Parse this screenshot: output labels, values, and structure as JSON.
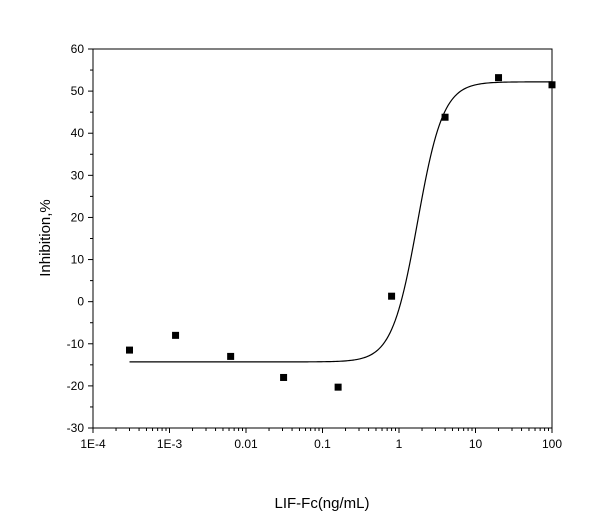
{
  "chart_data": {
    "type": "scatter",
    "title": "",
    "xlabel": "LIF-Fc(ng/mL)",
    "ylabel": "Inhibition,%",
    "x_scale": "log",
    "xlim": [
      0.0001,
      100
    ],
    "ylim": [
      -30,
      60
    ],
    "x_ticks": [
      0.0001,
      0.001,
      0.01,
      0.1,
      1,
      10,
      100
    ],
    "x_tick_labels": [
      "1E-4",
      "1E-3",
      "0.01",
      "0.1",
      "1",
      "10",
      "100"
    ],
    "y_ticks": [
      -30,
      -20,
      -10,
      0,
      10,
      20,
      30,
      40,
      50,
      60
    ],
    "y_tick_labels": [
      "-30",
      "-20",
      "-10",
      "0",
      "10",
      "20",
      "30",
      "40",
      "50",
      "60"
    ],
    "grid": false,
    "legend": "none",
    "series": [
      {
        "kind": "points",
        "marker": "square",
        "color": "#000000",
        "x": [
          0.0003,
          0.0012,
          0.0063,
          0.031,
          0.16,
          0.8,
          4,
          20,
          100
        ],
        "y": [
          -11.5,
          -8,
          -13,
          -18,
          -20.3,
          1.3,
          43.8,
          53.2,
          51.5
        ]
      },
      {
        "kind": "fit_curve",
        "color": "#000000",
        "model": "four-parameter logistic",
        "bottom": -14.3,
        "top": 52.2,
        "ec50": 1.75,
        "hill": 2.6,
        "x_range": [
          0.0003,
          100
        ]
      }
    ]
  }
}
